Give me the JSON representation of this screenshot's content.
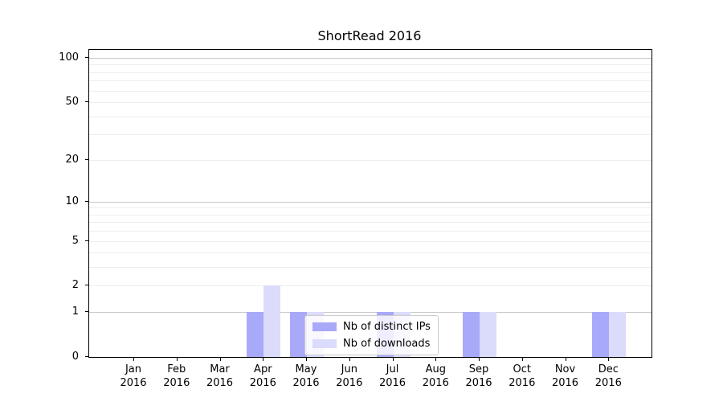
{
  "title": "ShortRead 2016",
  "chart_data": {
    "type": "bar",
    "title": "ShortRead 2016",
    "categories": [
      "Jan 2016",
      "Feb 2016",
      "Mar 2016",
      "Apr 2016",
      "May 2016",
      "Jun 2016",
      "Jul 2016",
      "Aug 2016",
      "Sep 2016",
      "Oct 2016",
      "Nov 2016",
      "Dec 2016"
    ],
    "series": [
      {
        "name": "Nb of distinct IPs",
        "color": "#a9a9f9",
        "values": [
          0,
          0,
          0,
          1,
          1,
          0,
          1,
          0,
          1,
          0,
          0,
          1
        ]
      },
      {
        "name": "Nb of downloads",
        "color": "#dbdbfb",
        "values": [
          0,
          0,
          0,
          2,
          1,
          0,
          1,
          0,
          1,
          0,
          0,
          1
        ]
      }
    ],
    "yticks": [
      0,
      1,
      2,
      5,
      10,
      20,
      50,
      100
    ],
    "yscale": "log1p",
    "ylim": [
      0,
      113
    ],
    "xlabel": "",
    "ylabel": "",
    "legend_position": "lower center inside",
    "grid": {
      "orientation": "horizontal",
      "major_lines": [
        1,
        10,
        100
      ],
      "minor_lines": [
        2,
        3,
        4,
        5,
        6,
        7,
        8,
        9,
        20,
        30,
        40,
        50,
        60,
        70,
        80,
        90
      ],
      "major_color": "#c8c8c8",
      "minor_color": "#ededed"
    },
    "colors": {
      "background": "#ffffff",
      "spine": "#000000",
      "text": "#000000",
      "legend_border": "#cccccc"
    }
  }
}
